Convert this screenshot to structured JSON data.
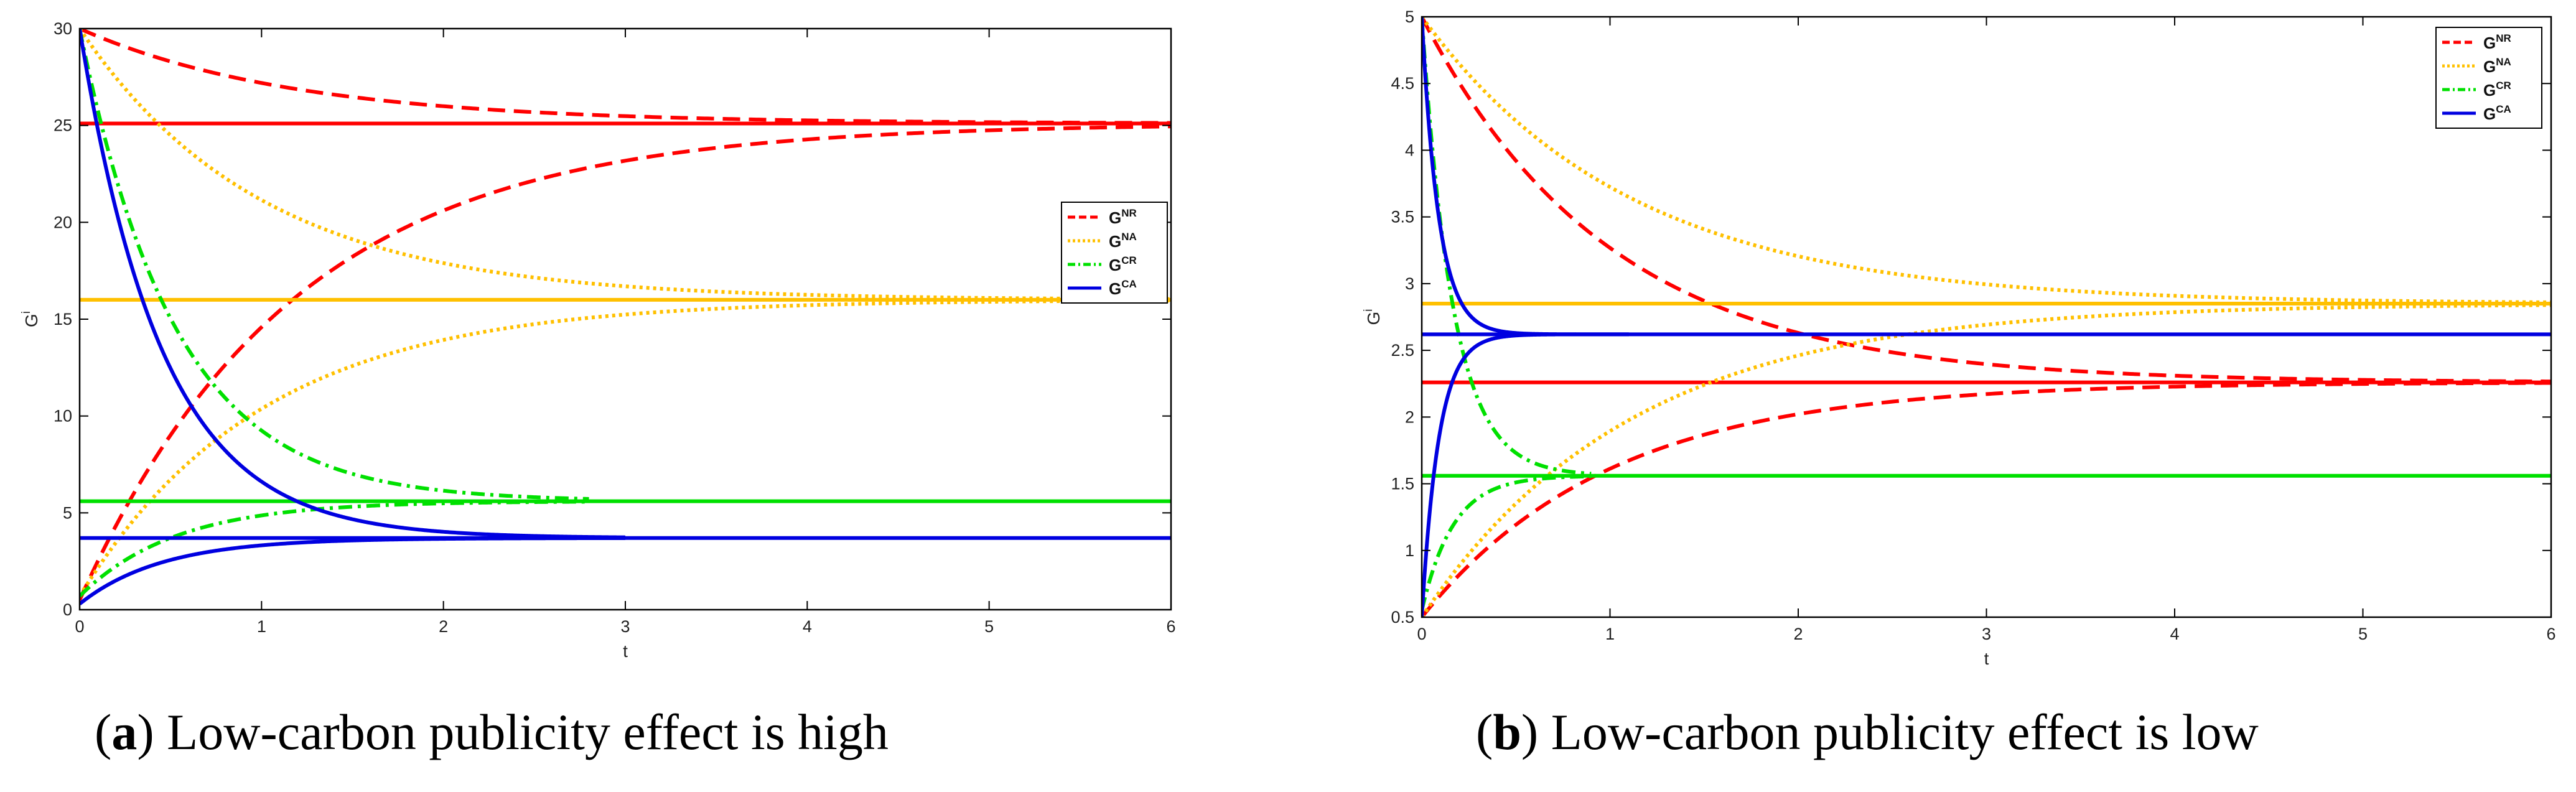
{
  "chart_data": [
    {
      "type": "line",
      "panel_label": "a",
      "caption": ") Low-carbon publicity effect is high",
      "xlabel": "t",
      "ylabel": "G",
      "ylabel_sup": "i",
      "xlim": [
        0,
        6
      ],
      "ylim": [
        0,
        30
      ],
      "xticks": [
        "0",
        "1",
        "2",
        "3",
        "4",
        "5",
        "6"
      ],
      "yticks": [
        "0",
        "5",
        "10",
        "15",
        "20",
        "25",
        "30"
      ],
      "grid": false,
      "legend_position": "upper-right-inset",
      "legend": [
        {
          "base": "G",
          "sup": "NR",
          "color": "#ff0000",
          "dash": "dashed"
        },
        {
          "base": "G",
          "sup": "NA",
          "color": "#ffc000",
          "dash": "dotted"
        },
        {
          "base": "G",
          "sup": "CR",
          "color": "#00e000",
          "dash": "dashdot"
        },
        {
          "base": "G",
          "sup": "CA",
          "color": "#0000e0",
          "dash": "solid"
        }
      ],
      "series": [
        {
          "name": "G^NR steady state",
          "color": "#ff0000",
          "dash": "solid",
          "steady": 25.1
        },
        {
          "name": "G^NR from high initial",
          "color": "#ff0000",
          "dash": "dashed",
          "start": 30,
          "steady": 25.1,
          "rate": 0.85,
          "t_end": 6
        },
        {
          "name": "G^NR from low initial",
          "color": "#ff0000",
          "dash": "dashed",
          "start": 0.5,
          "steady": 25.1,
          "rate": 0.85,
          "t_end": 6
        },
        {
          "name": "G^NA steady state",
          "color": "#ffc000",
          "dash": "solid",
          "steady": 16
        },
        {
          "name": "G^NA from high initial",
          "color": "#ffc000",
          "dash": "dotted",
          "start": 30,
          "steady": 16,
          "rate": 1.0,
          "t_end": 6
        },
        {
          "name": "G^NA from low initial",
          "color": "#ffc000",
          "dash": "dotted",
          "start": 0.7,
          "steady": 16,
          "rate": 1.0,
          "t_end": 6
        },
        {
          "name": "G^CR steady state",
          "color": "#00e000",
          "dash": "solid",
          "steady": 5.6
        },
        {
          "name": "G^CR from high initial",
          "color": "#00e000",
          "dash": "dashdot",
          "start": 30,
          "steady": 5.6,
          "rate": 1.9,
          "t_end": 2.8
        },
        {
          "name": "G^CR from low initial",
          "color": "#00e000",
          "dash": "dashdot",
          "start": 0.7,
          "steady": 5.6,
          "rate": 1.9,
          "t_end": 2.8
        },
        {
          "name": "G^CA steady state",
          "color": "#0000e0",
          "dash": "solid",
          "steady": 3.7
        },
        {
          "name": "G^CA from high initial",
          "color": "#0000e0",
          "dash": "solid",
          "start": 30,
          "steady": 3.7,
          "rate": 2.2,
          "t_end": 3
        },
        {
          "name": "G^CA from low initial",
          "color": "#0000e0",
          "dash": "solid",
          "start": 0.3,
          "steady": 3.7,
          "rate": 2.2,
          "t_end": 3
        }
      ]
    },
    {
      "type": "line",
      "panel_label": "b",
      "caption": ") Low-carbon publicity effect is low",
      "xlabel": "t",
      "ylabel": "G",
      "ylabel_sup": "i",
      "xlim": [
        0,
        6
      ],
      "ylim": [
        0.5,
        5
      ],
      "xticks": [
        "0",
        "1",
        "2",
        "3",
        "4",
        "5",
        "6"
      ],
      "yticks": [
        "0.5",
        "1",
        "1.5",
        "2",
        "2.5",
        "3",
        "3.5",
        "4",
        "4.5",
        "5"
      ],
      "grid": false,
      "legend_position": "upper-right-inset",
      "legend": [
        {
          "base": "G",
          "sup": "NR",
          "color": "#ff0000",
          "dash": "dashed"
        },
        {
          "base": "G",
          "sup": "NA",
          "color": "#ffc000",
          "dash": "dotted"
        },
        {
          "base": "G",
          "sup": "CR",
          "color": "#00e000",
          "dash": "dashdot"
        },
        {
          "base": "G",
          "sup": "CA",
          "color": "#0000e0",
          "dash": "solid"
        }
      ],
      "series": [
        {
          "name": "G^NR steady state",
          "color": "#ff0000",
          "dash": "solid",
          "steady": 2.26
        },
        {
          "name": "G^NR from high initial",
          "color": "#ff0000",
          "dash": "dashed",
          "start": 5,
          "steady": 2.26,
          "rate": 1.0,
          "t_end": 6
        },
        {
          "name": "G^NR from low initial",
          "color": "#ff0000",
          "dash": "dashed",
          "start": 0.5,
          "steady": 2.26,
          "rate": 1.0,
          "t_end": 6
        },
        {
          "name": "G^NA steady state",
          "color": "#ffc000",
          "dash": "solid",
          "steady": 2.85
        },
        {
          "name": "G^NA from high initial",
          "color": "#ffc000",
          "dash": "dotted",
          "start": 5,
          "steady": 2.85,
          "rate": 0.9,
          "t_end": 6
        },
        {
          "name": "G^NA from low initial",
          "color": "#ffc000",
          "dash": "dotted",
          "start": 0.5,
          "steady": 2.85,
          "rate": 0.9,
          "t_end": 6
        },
        {
          "name": "G^CR steady state",
          "color": "#00e000",
          "dash": "solid",
          "steady": 1.56
        },
        {
          "name": "G^CR from high initial",
          "color": "#00e000",
          "dash": "dashdot",
          "start": 5,
          "steady": 1.56,
          "rate": 6.0,
          "t_end": 0.9
        },
        {
          "name": "G^CR from low initial",
          "color": "#00e000",
          "dash": "dashdot",
          "start": 0.55,
          "steady": 1.56,
          "rate": 6.0,
          "t_end": 0.9
        },
        {
          "name": "G^CA steady state",
          "color": "#0000e0",
          "dash": "solid",
          "steady": 2.62
        },
        {
          "name": "G^CA from high initial",
          "color": "#0000e0",
          "dash": "solid",
          "start": 5,
          "steady": 2.62,
          "rate": 11.0,
          "t_end": 1.1
        },
        {
          "name": "G^CA from low initial",
          "color": "#0000e0",
          "dash": "solid",
          "start": 0.5,
          "steady": 2.62,
          "rate": 11.0,
          "t_end": 1.1
        }
      ]
    }
  ]
}
